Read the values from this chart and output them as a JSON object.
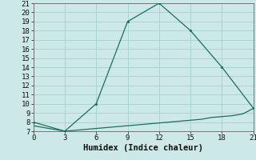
{
  "line1_x": [
    0,
    3,
    6,
    9,
    12,
    15,
    18,
    21
  ],
  "line1_y": [
    8,
    7,
    10,
    19,
    21,
    18,
    14,
    9.5
  ],
  "line2_x": [
    0,
    3,
    6,
    7,
    8,
    9,
    10,
    11,
    12,
    13,
    14,
    15,
    16,
    17,
    18,
    19,
    20,
    21
  ],
  "line2_y": [
    7.6,
    7.0,
    7.3,
    7.4,
    7.5,
    7.6,
    7.7,
    7.8,
    7.9,
    8.0,
    8.1,
    8.2,
    8.3,
    8.5,
    8.6,
    8.7,
    8.9,
    9.5
  ],
  "color": "#1a6e62",
  "bg_color": "#cce8e8",
  "grid_color": "#aad4d4",
  "xlabel": "Humidex (Indice chaleur)",
  "xlim": [
    0,
    21
  ],
  "ylim": [
    7,
    21
  ],
  "xticks": [
    0,
    3,
    6,
    9,
    12,
    15,
    18,
    21
  ],
  "yticks": [
    7,
    8,
    9,
    10,
    11,
    12,
    13,
    14,
    15,
    16,
    17,
    18,
    19,
    20,
    21
  ],
  "label_fontsize": 7.5,
  "tick_fontsize": 6.5
}
